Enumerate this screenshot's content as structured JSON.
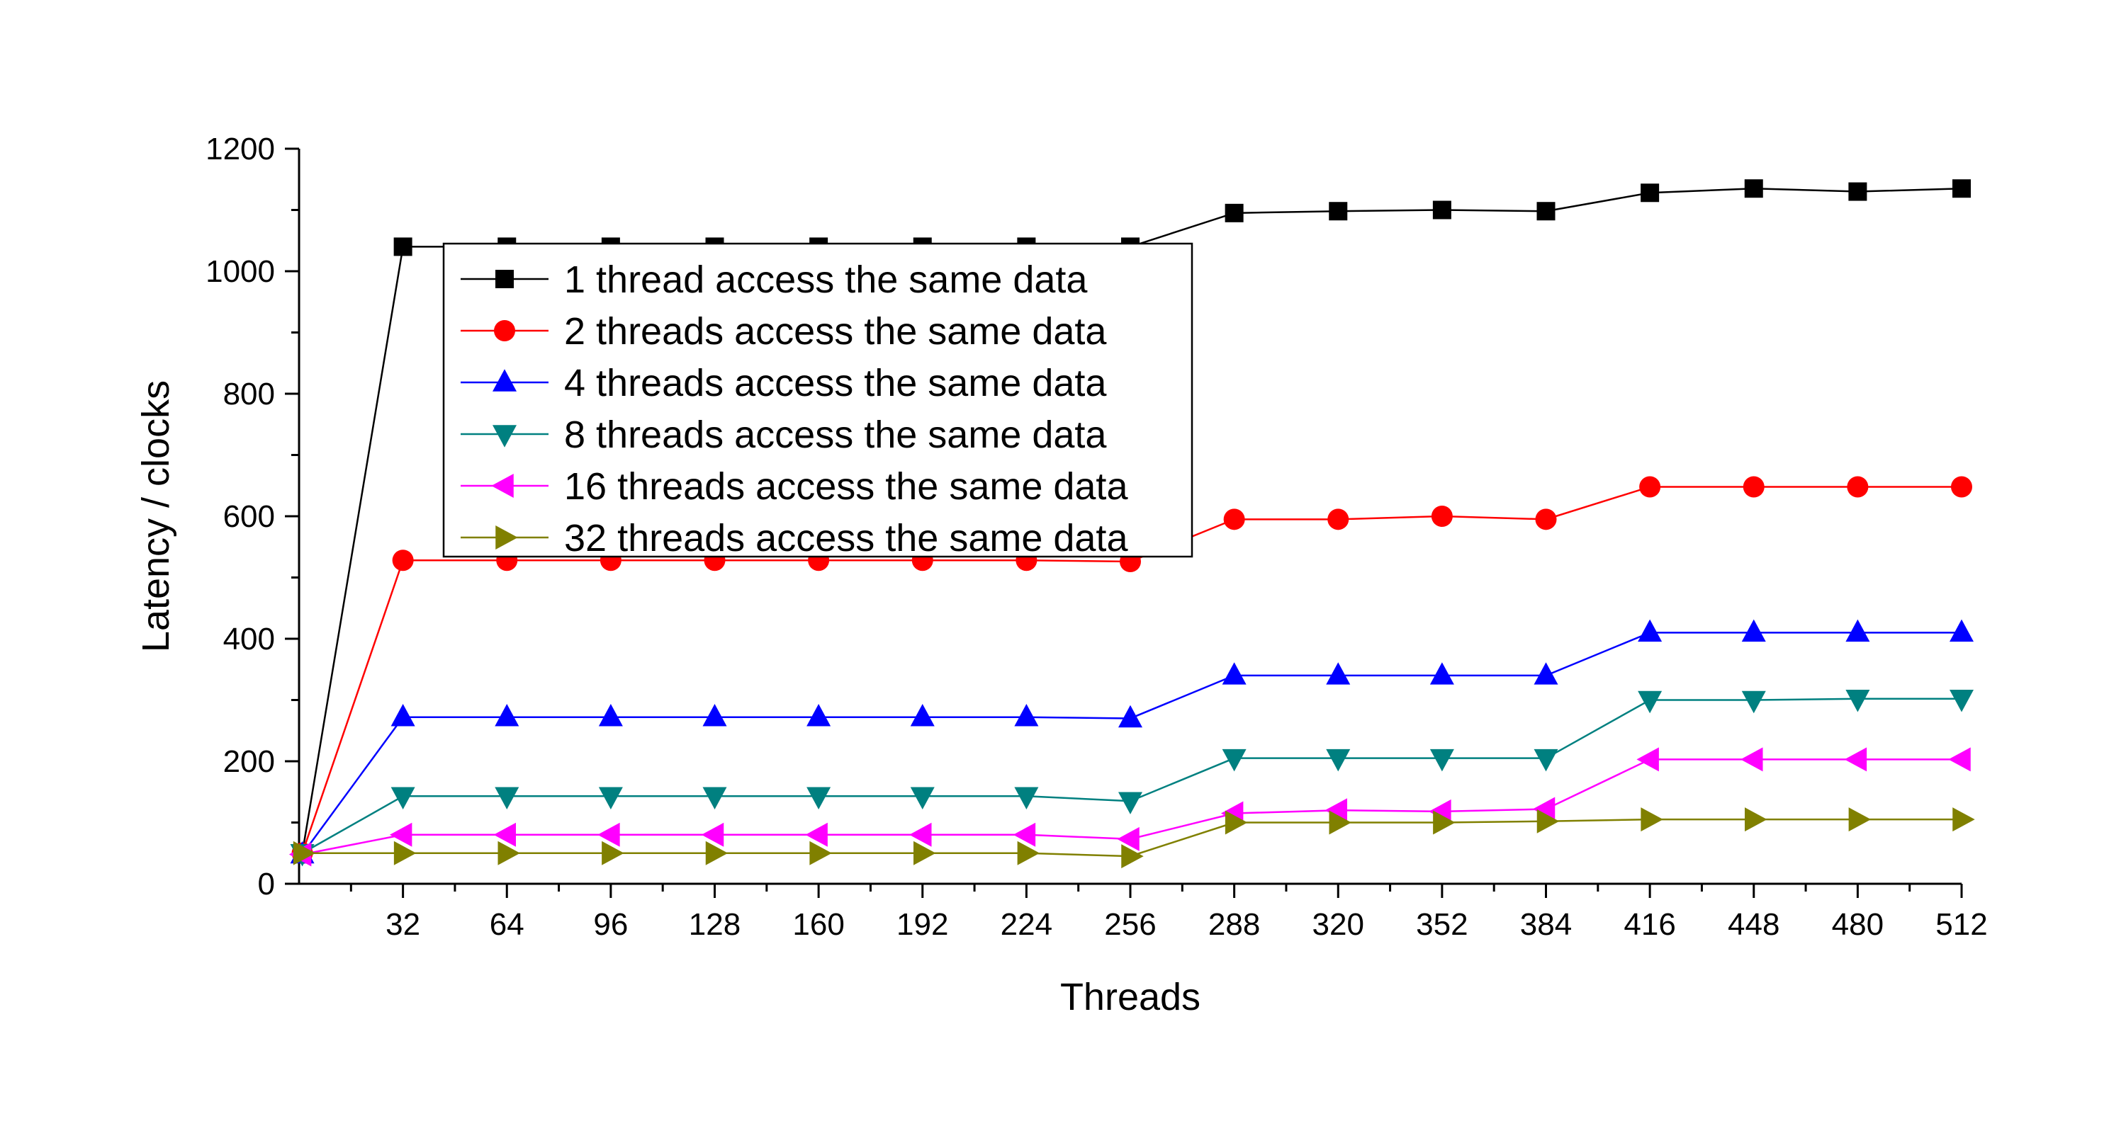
{
  "chart_data": {
    "type": "line",
    "xlabel": "Threads",
    "ylabel": "Latency / clocks",
    "xlim": [
      0,
      512
    ],
    "ylim": [
      0,
      1200
    ],
    "x": [
      1,
      32,
      64,
      96,
      128,
      160,
      192,
      224,
      256,
      288,
      320,
      352,
      384,
      416,
      448,
      480,
      512
    ],
    "xticks": [
      "32",
      "64",
      "96",
      "128",
      "160",
      "192",
      "224",
      "256",
      "288",
      "320",
      "352",
      "384",
      "416",
      "448",
      "480",
      "512"
    ],
    "yticks": [
      "0",
      "200",
      "400",
      "600",
      "800",
      "1000",
      "1200"
    ],
    "grid": false,
    "legend_position": "top-left inside plot",
    "series": [
      {
        "name": "1 thread access the same data",
        "color": "#000000",
        "marker": "square",
        "values": [
          50,
          1040,
          1040,
          1040,
          1040,
          1040,
          1040,
          1040,
          1040,
          1095,
          1098,
          1100,
          1098,
          1128,
          1135,
          1130,
          1135
        ]
      },
      {
        "name": "2 threads access the same data",
        "color": "#ff0000",
        "marker": "circle",
        "values": [
          50,
          528,
          528,
          528,
          528,
          528,
          528,
          528,
          526,
          595,
          595,
          600,
          595,
          648,
          648,
          648,
          648
        ]
      },
      {
        "name": "4 threads access the same data",
        "color": "#0000ff",
        "marker": "triangle-up",
        "values": [
          48,
          272,
          272,
          272,
          272,
          272,
          272,
          272,
          270,
          340,
          340,
          340,
          340,
          410,
          410,
          410,
          410
        ]
      },
      {
        "name": "8 threads access the same data",
        "color": "#008080",
        "marker": "triangle-down",
        "values": [
          50,
          143,
          143,
          143,
          143,
          143,
          143,
          143,
          135,
          205,
          205,
          205,
          205,
          300,
          300,
          302,
          302
        ]
      },
      {
        "name": "16 threads access the same data",
        "color": "#ff00ff",
        "marker": "triangle-left",
        "values": [
          48,
          80,
          80,
          80,
          80,
          80,
          80,
          80,
          73,
          115,
          120,
          118,
          122,
          203,
          203,
          203,
          203
        ]
      },
      {
        "name": "32 threads access the same data",
        "color": "#808000",
        "marker": "triangle-right",
        "values": [
          50,
          50,
          50,
          50,
          50,
          50,
          50,
          50,
          45,
          100,
          100,
          100,
          102,
          105,
          105,
          105,
          105
        ]
      }
    ]
  }
}
